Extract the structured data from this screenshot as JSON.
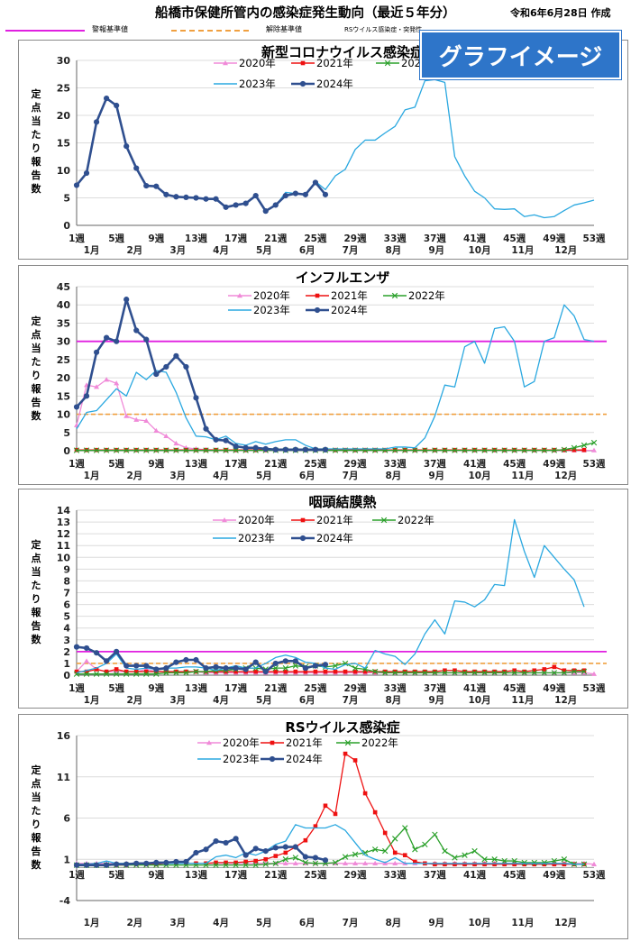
{
  "header": {
    "title": "船橋市保健所管内の感染症発生動向（最近５年分）",
    "date": "令和6年6月28日 作成",
    "legend_warning": "警報基準値",
    "legend_release": "解除基準値",
    "legend_rs_note": "RSウイルス感染症・突発性",
    "warning_color": "#e020e0",
    "release_color": "#f0a040"
  },
  "badge": "グラフイメージ",
  "y_label": "定点当たり報告数",
  "x_week_ticks": [
    "1週",
    "5週",
    "9週",
    "13週",
    "17週",
    "21週",
    "25週",
    "29週",
    "33週",
    "37週",
    "41週",
    "45週",
    "49週",
    "53週"
  ],
  "x_month_ticks": [
    "1月",
    "2月",
    "3月",
    "4月",
    "5月",
    "6月",
    "7月",
    "8月",
    "9月",
    "10月",
    "11月",
    "12月"
  ],
  "series_styles": [
    {
      "name": "2020年",
      "color": "#f08ad8",
      "marker": "triangle"
    },
    {
      "name": "2021年",
      "color": "#ee1111",
      "marker": "square"
    },
    {
      "name": "2022年",
      "color": "#2aa02a",
      "marker": "x"
    },
    {
      "name": "2023年",
      "color": "#2aa8e0",
      "marker": "none"
    },
    {
      "name": "2024年",
      "color": "#2f4f8f",
      "marker": "circle"
    }
  ],
  "chart_data": [
    {
      "type": "line",
      "title": "新型コロナウイルス感染症",
      "ylim": [
        0,
        30
      ],
      "yticks": [
        0,
        5,
        10,
        15,
        20,
        25,
        30
      ],
      "warning": null,
      "release": null,
      "series": [
        {
          "name": "2023年",
          "values": [
            null,
            null,
            null,
            null,
            null,
            null,
            null,
            null,
            null,
            null,
            null,
            null,
            null,
            null,
            null,
            null,
            null,
            null,
            null,
            null,
            3.5,
            6.0,
            5.8,
            5.5,
            8.0,
            6.5,
            9.0,
            10.2,
            13.8,
            15.5,
            15.5,
            16.8,
            18.0,
            21.0,
            21.5,
            26.3,
            26.5,
            26.0,
            12.5,
            9.0,
            6.2,
            5.0,
            3.0,
            2.9,
            3.0,
            1.6,
            1.9,
            1.4,
            1.6,
            2.7,
            3.7,
            4.1,
            4.6
          ]
        },
        {
          "name": "2024年",
          "values": [
            7.3,
            9.5,
            18.8,
            23.1,
            21.8,
            14.4,
            10.4,
            7.2,
            7.1,
            5.6,
            5.2,
            5.1,
            5.0,
            4.8,
            4.8,
            3.3,
            3.7,
            4.0,
            5.4,
            2.6,
            3.7,
            5.4,
            5.8,
            5.6,
            7.8,
            5.6
          ]
        }
      ]
    },
    {
      "type": "line",
      "title": "インフルエンザ",
      "ylim": [
        0,
        45
      ],
      "yticks": [
        0,
        5,
        10,
        15,
        20,
        25,
        30,
        35,
        40,
        45
      ],
      "warning": 30,
      "release": 10,
      "series": [
        {
          "name": "2020年",
          "values": [
            7.0,
            18.0,
            17.5,
            19.5,
            18.5,
            9.5,
            8.5,
            8.2,
            5.5,
            4.0,
            2.0,
            0.8,
            0.5,
            0.3,
            0.2,
            0.1,
            0.1,
            0.1,
            0.1,
            0.1,
            0.1,
            0.1,
            0.1,
            0.1,
            0.1,
            0.1,
            0.1,
            0.1,
            0.1,
            0.1,
            0.1,
            0.1,
            0.1,
            0.1,
            0.1,
            0.1,
            0.1,
            0.1,
            0.1,
            0.1,
            0.1,
            0.1,
            0.1,
            0.1,
            0.1,
            0.1,
            0.1,
            0.1,
            0.1,
            0.1,
            0.1,
            0.1,
            0.1
          ]
        },
        {
          "name": "2021年",
          "values": [
            0.2,
            0.2,
            0.2,
            0.2,
            0.2,
            0.2,
            0.2,
            0.2,
            0.2,
            0.2,
            0.2,
            0.2,
            0.2,
            0.2,
            0.2,
            0.2,
            0.2,
            0.2,
            0.2,
            0.2,
            0.2,
            0.2,
            0.2,
            0.2,
            0.2,
            0.2,
            0.2,
            0.2,
            0.2,
            0.2,
            0.2,
            0.2,
            0.2,
            0.2,
            0.2,
            0.2,
            0.2,
            0.2,
            0.2,
            0.2,
            0.2,
            0.2,
            0.2,
            0.2,
            0.2,
            0.2,
            0.2,
            0.2,
            0.2,
            0.2,
            0.2,
            0.2
          ]
        },
        {
          "name": "2022年",
          "values": [
            0.1,
            0.1,
            0.1,
            0.1,
            0.1,
            0.1,
            0.1,
            0.1,
            0.1,
            0.1,
            0.1,
            0.1,
            0.1,
            0.1,
            0.1,
            0.1,
            0.1,
            0.1,
            0.1,
            0.1,
            0.1,
            0.1,
            0.1,
            0.1,
            0.1,
            0.1,
            0.1,
            0.1,
            0.1,
            0.1,
            0.1,
            0.1,
            0.1,
            0.1,
            0.1,
            0.1,
            0.1,
            0.1,
            0.1,
            0.1,
            0.1,
            0.1,
            0.1,
            0.1,
            0.1,
            0.1,
            0.1,
            0.1,
            0.1,
            0.3,
            0.8,
            1.5,
            2.2
          ]
        },
        {
          "name": "2023年",
          "values": [
            6.0,
            10.5,
            11.0,
            14.0,
            17.0,
            15.0,
            21.5,
            19.5,
            22.0,
            21.5,
            16.0,
            9.0,
            4.0,
            3.8,
            3.0,
            4.0,
            2.0,
            1.5,
            2.5,
            1.8,
            2.5,
            3.0,
            3.0,
            1.5,
            0.5,
            0.5,
            0.5,
            0.5,
            0.5,
            0.5,
            0.5,
            0.5,
            1.0,
            1.0,
            0.8,
            3.5,
            9.5,
            18.0,
            17.5,
            28.5,
            30.0,
            24.0,
            33.5,
            34.0,
            30.0,
            17.5,
            19.0,
            30.0,
            31.0,
            40.0,
            37.0,
            30.5,
            30.0
          ]
        },
        {
          "name": "2024年",
          "values": [
            12.0,
            15.0,
            27.0,
            31.0,
            30.0,
            41.5,
            33.0,
            30.5,
            21.0,
            23.0,
            26.0,
            23.0,
            14.5,
            6.0,
            3.0,
            2.8,
            1.2,
            0.8,
            0.8,
            0.5,
            0.3,
            0.3,
            0.3,
            0.3,
            0.3,
            0.3
          ]
        }
      ]
    },
    {
      "type": "line",
      "title": "咽頭結膜熱",
      "ylim": [
        0,
        14
      ],
      "yticks": [
        0,
        1,
        2,
        3,
        4,
        5,
        6,
        7,
        8,
        9,
        10,
        11,
        12,
        13,
        14
      ],
      "warning": 2,
      "release": 1,
      "series": [
        {
          "name": "2020年",
          "values": [
            0.3,
            1.2,
            0.5,
            0.3,
            0.3,
            0.3,
            0.3,
            0.5,
            0.3,
            0.3,
            0.3,
            0.3,
            0.3,
            0.2,
            0.2,
            0.2,
            0.2,
            0.2,
            0.2,
            0.2,
            0.2,
            0.2,
            0.2,
            0.2,
            0.2,
            0.2,
            0.2,
            0.2,
            0.2,
            0.2,
            0.2,
            0.2,
            0.2,
            0.2,
            0.2,
            0.2,
            0.2,
            0.2,
            0.2,
            0.2,
            0.2,
            0.2,
            0.2,
            0.2,
            0.2,
            0.2,
            0.2,
            0.2,
            0.2,
            0.2,
            0.2,
            0.2,
            0.1
          ]
        },
        {
          "name": "2021年",
          "values": [
            0.3,
            0.3,
            0.5,
            0.3,
            0.5,
            0.3,
            0.3,
            0.3,
            0.3,
            0.3,
            0.3,
            0.3,
            0.3,
            0.3,
            0.3,
            0.3,
            0.3,
            0.3,
            0.3,
            0.3,
            0.3,
            0.3,
            0.3,
            0.3,
            0.3,
            0.3,
            0.3,
            0.3,
            0.3,
            0.3,
            0.3,
            0.3,
            0.3,
            0.3,
            0.3,
            0.3,
            0.3,
            0.4,
            0.4,
            0.3,
            0.3,
            0.3,
            0.3,
            0.3,
            0.4,
            0.3,
            0.4,
            0.5,
            0.7,
            0.4,
            0.4,
            0.4
          ]
        },
        {
          "name": "2022年",
          "values": [
            0.1,
            0.1,
            0.1,
            0.1,
            0.1,
            0.1,
            0.1,
            0.1,
            0.1,
            0.2,
            0.2,
            0.2,
            0.3,
            0.3,
            0.4,
            0.4,
            0.5,
            0.6,
            0.6,
            0.5,
            0.6,
            0.6,
            0.8,
            0.7,
            0.8,
            0.7,
            0.8,
            1.0,
            0.6,
            0.5,
            0.3,
            0.2,
            0.2,
            0.2,
            0.2,
            0.2,
            0.2,
            0.2,
            0.2,
            0.2,
            0.2,
            0.2,
            0.2,
            0.2,
            0.2,
            0.2,
            0.2,
            0.2,
            0.2,
            0.2,
            0.3,
            0.3
          ]
        },
        {
          "name": "2023年",
          "values": [
            0.2,
            0.4,
            0.6,
            1.0,
            1.8,
            0.6,
            0.5,
            0.6,
            0.5,
            0.6,
            0.6,
            0.7,
            0.7,
            0.6,
            0.4,
            0.6,
            0.8,
            0.6,
            0.6,
            1.0,
            1.5,
            1.7,
            1.5,
            1.1,
            1.0,
            0.6,
            0.5,
            0.9,
            1.0,
            0.6,
            2.1,
            1.8,
            1.6,
            0.9,
            1.8,
            3.5,
            4.7,
            3.5,
            6.3,
            6.2,
            5.8,
            6.4,
            7.7,
            7.6,
            13.2,
            10.5,
            8.3,
            11.0,
            10.0,
            9.0,
            8.1,
            5.8
          ]
        },
        {
          "name": "2024年",
          "values": [
            2.4,
            2.3,
            1.9,
            1.2,
            2.0,
            0.8,
            0.8,
            0.8,
            0.5,
            0.6,
            1.1,
            1.3,
            1.3,
            0.6,
            0.7,
            0.6,
            0.6,
            0.5,
            1.1,
            0.3,
            1.0,
            1.2,
            1.2,
            0.6,
            0.8,
            0.9
          ]
        }
      ]
    },
    {
      "type": "line",
      "title": "RSウイルス感染症",
      "ylim": [
        -4,
        16
      ],
      "yticks": [
        -4,
        1,
        6,
        11,
        16
      ],
      "warning": null,
      "release": null,
      "series": [
        {
          "name": "2020年",
          "values": [
            0.5,
            0.5,
            0.5,
            0.5,
            0.5,
            0.5,
            0.5,
            0.5,
            0.5,
            0.5,
            0.5,
            0.5,
            0.5,
            0.5,
            0.5,
            0.5,
            0.5,
            0.5,
            0.5,
            0.5,
            0.5,
            0.5,
            0.5,
            0.5,
            0.5,
            0.5,
            0.5,
            0.5,
            0.5,
            0.5,
            0.5,
            0.5,
            0.5,
            0.5,
            0.5,
            0.5,
            0.5,
            0.5,
            0.5,
            0.5,
            0.5,
            0.5,
            0.5,
            0.5,
            0.5,
            0.5,
            0.5,
            0.5,
            0.5,
            0.5,
            0.5,
            0.5,
            0.4
          ]
        },
        {
          "name": "2021年",
          "values": [
            0.3,
            0.3,
            0.3,
            0.3,
            0.3,
            0.3,
            0.4,
            0.4,
            0.4,
            0.5,
            0.5,
            0.5,
            0.5,
            0.5,
            0.6,
            0.6,
            0.6,
            0.7,
            0.8,
            1.0,
            1.4,
            1.8,
            2.5,
            3.3,
            5.0,
            7.5,
            6.5,
            13.8,
            13.0,
            9.0,
            6.7,
            4.2,
            1.8,
            1.5,
            0.7,
            0.5,
            0.4,
            0.4,
            0.4,
            0.4,
            0.4,
            0.4,
            0.4,
            0.4,
            0.4,
            0.4,
            0.4,
            0.4,
            0.4,
            0.4,
            0.4,
            0.4
          ]
        },
        {
          "name": "2022年",
          "values": [
            0.3,
            0.3,
            0.3,
            0.3,
            0.3,
            0.3,
            0.3,
            0.3,
            0.3,
            0.3,
            0.3,
            0.3,
            0.3,
            0.3,
            0.3,
            0.3,
            0.3,
            0.3,
            0.3,
            0.4,
            0.5,
            1.0,
            1.2,
            0.6,
            0.5,
            0.5,
            0.6,
            1.3,
            1.6,
            1.8,
            2.2,
            2.0,
            3.5,
            4.8,
            2.2,
            2.8,
            4.0,
            2.0,
            1.2,
            1.5,
            2.0,
            1.0,
            1.0,
            0.8,
            0.8,
            0.6,
            0.6,
            0.6,
            0.8,
            1.0,
            0.4,
            0.4
          ]
        },
        {
          "name": "2023年",
          "values": [
            0.4,
            0.4,
            0.5,
            0.8,
            0.5,
            0.5,
            0.5,
            0.5,
            0.5,
            0.5,
            0.5,
            0.5,
            0.5,
            0.5,
            1.3,
            1.5,
            1.2,
            1.8,
            1.5,
            2.0,
            2.8,
            3.2,
            5.2,
            4.8,
            4.8,
            4.8,
            5.2,
            4.5,
            3.0,
            1.5,
            1.0,
            0.6,
            1.2,
            0.5,
            0.5,
            0.5,
            0.5,
            0.5,
            0.5,
            0.5,
            0.5,
            0.5,
            0.5,
            0.5,
            0.5,
            0.5,
            0.5,
            0.5,
            0.5,
            0.5,
            0.4,
            0.4
          ]
        },
        {
          "name": "2024年",
          "values": [
            0.3,
            0.3,
            0.3,
            0.3,
            0.4,
            0.4,
            0.5,
            0.5,
            0.6,
            0.6,
            0.7,
            0.7,
            1.8,
            2.2,
            3.2,
            3.0,
            3.5,
            1.5,
            2.3,
            2.0,
            2.4,
            2.5,
            2.5,
            1.3,
            1.2,
            0.9
          ]
        }
      ]
    }
  ]
}
